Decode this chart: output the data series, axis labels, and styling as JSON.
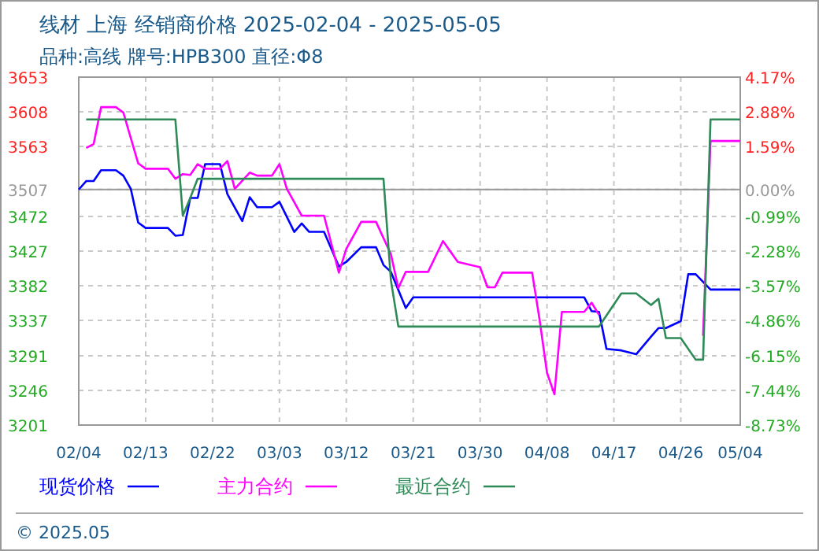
{
  "chart_data": {
    "type": "line",
    "title": "线材 上海 经销商价格 2025-02-04 - 2025-05-05",
    "subtitle": "品种:高线 牌号:HPB300 直径:Φ8",
    "annotations": [
      "© 2025.05"
    ],
    "xlim": [
      "2025-02-04",
      "2025-05-04"
    ],
    "xticks": [
      {
        "value": "2025-02-04",
        "label": "02/04"
      },
      {
        "value": "2025-02-13",
        "label": "02/13"
      },
      {
        "value": "2025-02-22",
        "label": "02/22"
      },
      {
        "value": "2025-03-03",
        "label": "03/03"
      },
      {
        "value": "2025-03-12",
        "label": "03/12"
      },
      {
        "value": "2025-03-21",
        "label": "03/21"
      },
      {
        "value": "2025-03-30",
        "label": "03/30"
      },
      {
        "value": "2025-04-08",
        "label": "04/08"
      },
      {
        "value": "2025-04-17",
        "label": "04/17"
      },
      {
        "value": "2025-04-26",
        "label": "04/26"
      },
      {
        "value": "2025-05-04",
        "label": "05/04"
      }
    ],
    "ylim": [
      3201,
      3653
    ],
    "yticks": [
      3653,
      3608,
      3563,
      3507,
      3472,
      3427,
      3382,
      3337,
      3291,
      3246,
      3201
    ],
    "y2lim": [
      -8.73,
      4.17
    ],
    "y2ticks": [
      {
        "value": 4.17,
        "label": "4.17%"
      },
      {
        "value": 2.88,
        "label": "2.88%"
      },
      {
        "value": 1.59,
        "label": "1.59%"
      },
      {
        "value": 0,
        "label": "0.00%"
      },
      {
        "value": -0.99,
        "label": "-0.99%"
      },
      {
        "value": -2.28,
        "label": "-2.28%"
      },
      {
        "value": -3.57,
        "label": "-3.57%"
      },
      {
        "value": -4.86,
        "label": "-4.86%"
      },
      {
        "value": -6.15,
        "label": "-6.15%"
      },
      {
        "value": -7.44,
        "label": "-7.44%"
      },
      {
        "value": -8.73,
        "label": "-8.73%"
      }
    ],
    "ref_lines": [
      {
        "axis": "y",
        "value": 3507,
        "color": "#999999"
      }
    ],
    "grid": true,
    "legend": "bottom",
    "series": [
      {
        "name": "现货价格",
        "color": "#0000ff",
        "x": [
          "2025-02-04",
          "2025-02-05",
          "2025-02-06",
          "2025-02-07",
          "2025-02-09",
          "2025-02-10",
          "2025-02-11",
          "2025-02-12",
          "2025-02-13",
          "2025-02-16",
          "2025-02-17",
          "2025-02-18",
          "2025-02-19",
          "2025-02-20",
          "2025-02-21",
          "2025-02-23",
          "2025-02-24",
          "2025-02-26",
          "2025-02-27",
          "2025-02-28",
          "2025-03-02",
          "2025-03-03",
          "2025-03-05",
          "2025-03-06",
          "2025-03-07",
          "2025-03-09",
          "2025-03-11",
          "2025-03-12",
          "2025-03-14",
          "2025-03-16",
          "2025-03-17",
          "2025-03-18",
          "2025-03-20",
          "2025-03-21",
          "2025-04-13",
          "2025-04-14",
          "2025-04-15",
          "2025-04-16",
          "2025-04-18",
          "2025-04-20",
          "2025-04-22",
          "2025-04-23",
          "2025-04-24",
          "2025-04-26",
          "2025-04-27",
          "2025-04-28",
          "2025-04-30",
          "2025-05-04"
        ],
        "values": [
          3507,
          3518,
          3518,
          3532,
          3532,
          3525,
          3508,
          3464,
          3457,
          3457,
          3447,
          3448,
          3496,
          3496,
          3540,
          3540,
          3501,
          3466,
          3497,
          3484,
          3484,
          3491,
          3452,
          3463,
          3452,
          3452,
          3407,
          3413,
          3432,
          3432,
          3409,
          3400,
          3353,
          3367,
          3367,
          3349,
          3348,
          3300,
          3298,
          3293,
          3316,
          3327,
          3327,
          3336,
          3397,
          3397,
          3377,
          3377
        ]
      },
      {
        "name": "主力合约",
        "color": "#ff00ff",
        "x": [
          "2025-02-05",
          "2025-02-06",
          "2025-02-07",
          "2025-02-09",
          "2025-02-10",
          "2025-02-12",
          "2025-02-13",
          "2025-02-16",
          "2025-02-17",
          "2025-02-18",
          "2025-02-19",
          "2025-02-20",
          "2025-02-21",
          "2025-02-23",
          "2025-02-24",
          "2025-02-25",
          "2025-02-27",
          "2025-02-28",
          "2025-03-02",
          "2025-03-03",
          "2025-03-04",
          "2025-03-06",
          "2025-03-09",
          "2025-03-11",
          "2025-03-12",
          "2025-03-14",
          "2025-03-16",
          "2025-03-18",
          "2025-03-19",
          "2025-03-20",
          "2025-03-23",
          "2025-03-25",
          "2025-03-27",
          "2025-03-30",
          "2025-03-31",
          "2025-04-01",
          "2025-04-02",
          "2025-04-06",
          "2025-04-07",
          "2025-04-08",
          "2025-04-09",
          "2025-04-10",
          "2025-04-13",
          "2025-04-14",
          "2025-04-15",
          "2025-04-22",
          "2025-04-29",
          "2025-04-30",
          "2025-05-04"
        ],
        "values": [
          3561,
          3566,
          3614,
          3614,
          3607,
          3541,
          3534,
          3534,
          3521,
          3527,
          3526,
          3540,
          3534,
          3534,
          3544,
          3508,
          3529,
          3525,
          3525,
          3540,
          3508,
          3473,
          3473,
          3399,
          3430,
          3465,
          3465,
          3423,
          3379,
          3400,
          3400,
          3440,
          3413,
          3406,
          3380,
          3380,
          3399,
          3399,
          3338,
          3269,
          3241,
          3348,
          3348,
          3360,
          3344,
          null,
          3317,
          3570,
          3570
        ]
      },
      {
        "name": "最近合约",
        "color": "#2e8b57",
        "x": [
          "2025-02-05",
          "2025-02-17",
          "2025-02-18",
          "2025-02-19",
          "2025-02-20",
          "2025-03-17",
          "2025-03-18",
          "2025-03-19",
          "2025-04-15",
          "2025-04-18",
          "2025-04-20",
          "2025-04-22",
          "2025-04-23",
          "2025-04-24",
          "2025-04-26",
          "2025-04-28",
          "2025-04-29",
          "2025-04-30",
          "2025-05-04"
        ],
        "values": [
          3598,
          3598,
          3473,
          3496,
          3521,
          3521,
          3389,
          3329,
          3329,
          3372,
          3372,
          3357,
          3365,
          3314,
          3314,
          3286,
          3286,
          3598,
          3598
        ]
      }
    ]
  }
}
